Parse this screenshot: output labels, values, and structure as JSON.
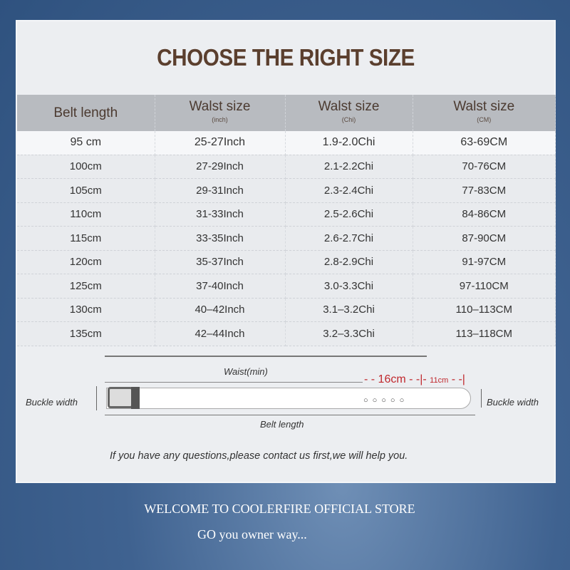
{
  "title": "CHOOSE THE RIGHT SIZE",
  "table": {
    "headers": [
      {
        "label": "Belt length",
        "unit": ""
      },
      {
        "label": "Walst size",
        "unit": "(inch)"
      },
      {
        "label": "Walst size",
        "unit": "(Chi)"
      },
      {
        "label": "Walst size",
        "unit": "(CM)"
      }
    ],
    "rows": [
      [
        "95 cm",
        "25-27Inch",
        "1.9-2.0Chi",
        "63-69CM"
      ],
      [
        "100cm",
        "27-29Inch",
        "2.1-2.2Chi",
        "70-76CM"
      ],
      [
        "105cm",
        "29-31Inch",
        "2.3-2.4Chi",
        "77-83CM"
      ],
      [
        "110cm",
        "31-33Inch",
        "2.5-2.6Chi",
        "84-86CM"
      ],
      [
        "115cm",
        "33-35Inch",
        "2.6-2.7Chi",
        "87-90CM"
      ],
      [
        "120cm",
        "35-37Inch",
        "2.8-2.9Chi",
        "91-97CM"
      ],
      [
        "125cm",
        "37-40Inch",
        "3.0-3.3Chi",
        "97-110CM"
      ],
      [
        "130cm",
        "40–42Inch",
        "3.1–3.2Chi",
        "110–113CM"
      ],
      [
        "135cm",
        "42–44Inch",
        "3.2–3.3Chi",
        "113–118CM"
      ]
    ]
  },
  "diagram": {
    "waist_label": "Waist(min)",
    "hole_span": "16cm",
    "tip_span": "11cm",
    "buckle_width_left": "Buckle width",
    "buckle_width_right": "Buckle width",
    "belt_length_label": "Belt length",
    "accent_color": "#c0282d"
  },
  "note": "If you have any questions,please contact us first,we will help you.",
  "footer": {
    "line1": "WELCOME TO COOLERFIRE OFFICIAL STORE",
    "line2": "GO  you owner way..."
  }
}
